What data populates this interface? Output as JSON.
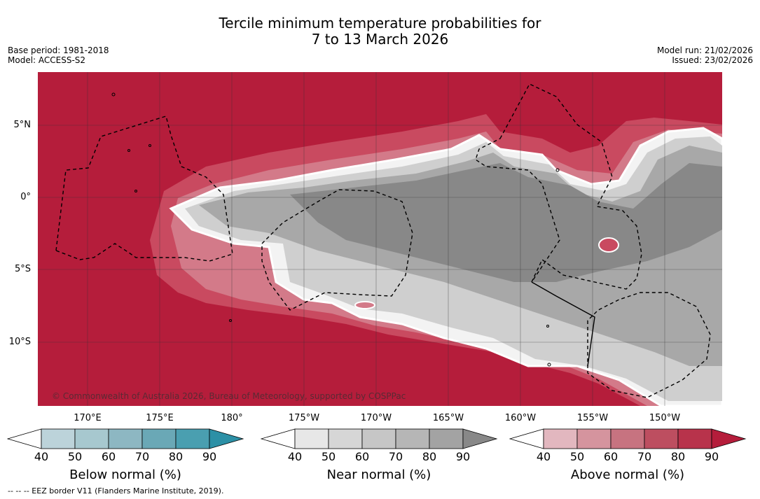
{
  "title": {
    "line1": "Tercile minimum temperature probabilities for",
    "line2": "7 to 13 March 2026"
  },
  "meta_left": {
    "base_period": "Base period: 1981-2018",
    "model": "Model: ACCESS-S2"
  },
  "meta_right": {
    "model_run": "Model run: 21/02/2026",
    "issued": "Issued: 23/02/2026"
  },
  "map": {
    "lat_labels": [
      "5°N",
      "0°",
      "5°S",
      "10°S"
    ],
    "lon_labels": [
      "170°E",
      "175°E",
      "180°",
      "175°W",
      "170°W",
      "165°W",
      "160°W",
      "155°W",
      "150°W"
    ],
    "copyright": "© Commonwealth of Australia 2026, Bureau of Meteorology, supported by COSPPac",
    "colors": {
      "above_90": "#b51d3b",
      "near_90": "#888888",
      "near_80": "#a3a3a3",
      "near_70": "#b6b6b6",
      "near_60": "#c6c6c6",
      "near_50": "#d6d6d6",
      "near_40": "#e7e7e7",
      "gridline": "#333333",
      "eez_border": "#000000"
    }
  },
  "colorbars": [
    {
      "label": "Below normal (%)",
      "ticks": [
        "40",
        "50",
        "60",
        "70",
        "80",
        "90"
      ],
      "colors": [
        "#bcd3da",
        "#a7c8cf",
        "#8db7c2",
        "#6aa8b6",
        "#4a9fb0",
        "#2c90a6"
      ]
    },
    {
      "label": "Near normal (%)",
      "ticks": [
        "40",
        "50",
        "60",
        "70",
        "80",
        "90"
      ],
      "colors": [
        "#e7e7e7",
        "#d6d6d6",
        "#c6c6c6",
        "#b6b6b6",
        "#a3a3a3",
        "#888888"
      ]
    },
    {
      "label": "Above normal (%)",
      "ticks": [
        "40",
        "50",
        "60",
        "70",
        "80",
        "90"
      ],
      "colors": [
        "#e2b7bf",
        "#d5949e",
        "#c77380",
        "#bd4e60",
        "#b8334b",
        "#b51d3b"
      ]
    }
  ],
  "footnote": "--  --  -- EEZ border V11 (Flanders Marine Institute, 2019)."
}
